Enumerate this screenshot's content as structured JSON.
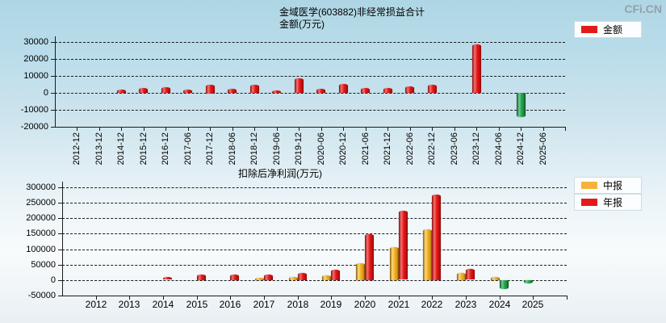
{
  "watermark": "CFi.CN",
  "chart_data": [
    {
      "type": "bar",
      "title": "金域医学(603882)非经常损益合计",
      "ylabel": "金额(万元)",
      "legend_position": "top-right",
      "grid": "horizontal-dashed",
      "categories": [
        "2012-12",
        "2013-12",
        "2014-12",
        "2015-12",
        "2016-12",
        "2017-06",
        "2017-12",
        "2018-06",
        "2018-12",
        "2019-06",
        "2019-12",
        "2020-06",
        "2020-12",
        "2021-06",
        "2021-12",
        "2022-06",
        "2022-12",
        "2023-06",
        "2023-12",
        "2024-06",
        "2024-12",
        "2025-06"
      ],
      "values": [
        null,
        null,
        1700,
        2900,
        3400,
        2000,
        5000,
        2400,
        4600,
        1600,
        8400,
        2400,
        5300,
        3000,
        3000,
        3900,
        4800,
        null,
        28500,
        null,
        -14400,
        null
      ],
      "legend": [
        {
          "label": "金额",
          "color": "#e31a1a"
        }
      ],
      "ylim": [
        -20000,
        30000
      ],
      "yticks": [
        30000,
        20000,
        10000,
        0,
        -10000,
        -20000
      ],
      "negative_color": "#2f9e4f"
    },
    {
      "type": "bar",
      "title": "扣除后净利润(万元)",
      "legend_position": "right",
      "grid": "horizontal-dashed",
      "categories": [
        "2012",
        "2013",
        "2014",
        "2015",
        "2016",
        "2017",
        "2018",
        "2019",
        "2020",
        "2021",
        "2022",
        "2023",
        "2024",
        "2025"
      ],
      "series": [
        {
          "name": "中报",
          "color": "#f5b33c",
          "values": [
            null,
            null,
            null,
            null,
            null,
            7000,
            10500,
            16500,
            55000,
            106000,
            165000,
            24000,
            10000,
            -11000
          ]
        },
        {
          "name": "年报",
          "color": "#e31a1a",
          "values": [
            null,
            null,
            9000,
            17500,
            18400,
            18500,
            23500,
            33000,
            148000,
            223000,
            276000,
            35000,
            -28500,
            null
          ]
        }
      ],
      "ylim": [
        -50000,
        300000
      ],
      "yticks": [
        300000,
        250000,
        200000,
        150000,
        100000,
        50000,
        0,
        -50000
      ],
      "negative_color": "#2f9e4f"
    }
  ]
}
